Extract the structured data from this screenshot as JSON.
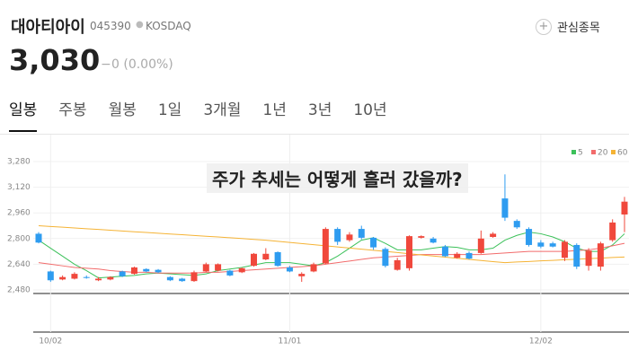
{
  "header": {
    "name": "대아티아이",
    "code": "045390",
    "market": "KOSDAQ",
    "price": "3,030",
    "change_symbol": "−",
    "change": "0 (0.00%)",
    "watch_button": "관심종목"
  },
  "tabs": [
    "일봉",
    "주봉",
    "월봉",
    "1일",
    "3개월",
    "1년",
    "3년",
    "10년"
  ],
  "chart_data": {
    "type": "candlestick",
    "title": "주가 추세는 어떻게 흘러 갔을까?",
    "categories": [
      null,
      "10/02",
      null,
      null,
      null,
      null,
      null,
      null,
      null,
      null,
      null,
      null,
      null,
      null,
      null,
      null,
      null,
      null,
      null,
      null,
      null,
      "11/01",
      null,
      null,
      null,
      null,
      null,
      null,
      null,
      null,
      null,
      null,
      null,
      null,
      null,
      null,
      null,
      null,
      null,
      null,
      null,
      null,
      "12/02",
      null,
      null,
      null,
      null,
      null,
      null,
      null
    ],
    "open": [
      2830,
      2595,
      2545,
      2550,
      2560,
      2540,
      2545,
      2595,
      2580,
      2610,
      2605,
      2560,
      2550,
      2535,
      2595,
      2600,
      2600,
      2590,
      2630,
      2670,
      2715,
      2620,
      2565,
      2595,
      2645,
      2860,
      2790,
      2860,
      2805,
      2735,
      2605,
      2615,
      2805,
      2800,
      2750,
      2680,
      2710,
      2710,
      2810,
      3050,
      2910,
      2860,
      2775,
      2770,
      2680,
      2760,
      2630,
      2625,
      2790,
      2950
    ],
    "high": [
      2840,
      2600,
      2570,
      2590,
      2570,
      2560,
      2565,
      2600,
      2625,
      2615,
      2610,
      2565,
      2555,
      2600,
      2650,
      2645,
      2605,
      2620,
      2710,
      2740,
      2720,
      2630,
      2590,
      2650,
      2870,
      2870,
      2840,
      2880,
      2810,
      2745,
      2680,
      2820,
      2820,
      2810,
      2760,
      2715,
      2720,
      2850,
      2840,
      3200,
      2920,
      2870,
      2790,
      2780,
      2790,
      2770,
      2740,
      2780,
      2920,
      3060
    ],
    "low": [
      2770,
      2530,
      2540,
      2545,
      2550,
      2535,
      2540,
      2560,
      2575,
      2590,
      2585,
      2535,
      2530,
      2530,
      2590,
      2595,
      2565,
      2585,
      2625,
      2665,
      2625,
      2590,
      2530,
      2590,
      2640,
      2760,
      2780,
      2795,
      2730,
      2620,
      2600,
      2600,
      2800,
      2770,
      2685,
      2675,
      2670,
      2705,
      2805,
      2910,
      2860,
      2750,
      2740,
      2745,
      2660,
      2610,
      2600,
      2600,
      2780,
      2840
    ],
    "close": [
      2775,
      2540,
      2560,
      2580,
      2555,
      2550,
      2560,
      2565,
      2620,
      2595,
      2590,
      2540,
      2535,
      2590,
      2640,
      2640,
      2570,
      2615,
      2705,
      2705,
      2630,
      2595,
      2580,
      2640,
      2860,
      2780,
      2825,
      2805,
      2745,
      2630,
      2665,
      2815,
      2815,
      2775,
      2690,
      2705,
      2675,
      2800,
      2830,
      2930,
      2870,
      2760,
      2750,
      2750,
      2780,
      2625,
      2725,
      2770,
      2900,
      3030
    ],
    "up_color": "#f0483c",
    "down_color": "#2e9cf0",
    "series": [
      {
        "name": "5",
        "color": "#3cc15a",
        "values": [
          2790,
          2740,
          2690,
          2640,
          2600,
          2555,
          2560,
          2565,
          2570,
          2580,
          2585,
          2580,
          2575,
          2570,
          2580,
          2600,
          2610,
          2620,
          2635,
          2650,
          2650,
          2650,
          2640,
          2630,
          2650,
          2690,
          2740,
          2790,
          2805,
          2770,
          2730,
          2730,
          2730,
          2740,
          2750,
          2745,
          2730,
          2730,
          2740,
          2790,
          2820,
          2840,
          2830,
          2810,
          2780,
          2740,
          2720,
          2720,
          2760,
          2830
        ]
      },
      {
        "name": "20",
        "color": "#f26b6b",
        "values": [
          2650,
          2640,
          2630,
          2620,
          2615,
          2610,
          2600,
          2595,
          2590,
          2590,
          2585,
          2585,
          2585,
          2585,
          2590,
          2590,
          2595,
          2600,
          2605,
          2610,
          2615,
          2620,
          2625,
          2630,
          2640,
          2650,
          2660,
          2670,
          2680,
          2685,
          2690,
          2695,
          2700,
          2700,
          2700,
          2700,
          2700,
          2700,
          2705,
          2710,
          2715,
          2720,
          2720,
          2720,
          2720,
          2725,
          2730,
          2740,
          2755,
          2770
        ]
      },
      {
        "name": "60",
        "color": "#f5b335",
        "values": [
          2880,
          2875,
          2871,
          2866,
          2861,
          2857,
          2852,
          2847,
          2842,
          2838,
          2833,
          2828,
          2824,
          2819,
          2814,
          2810,
          2805,
          2800,
          2795,
          2790,
          2783,
          2776,
          2769,
          2762,
          2755,
          2748,
          2741,
          2734,
          2727,
          2720,
          2713,
          2705,
          2698,
          2691,
          2684,
          2677,
          2670,
          2663,
          2656,
          2650,
          2654,
          2657,
          2661,
          2664,
          2668,
          2671,
          2675,
          2678,
          2682,
          2685
        ]
      }
    ],
    "ylim": [
      2480,
      3280
    ],
    "yticks": [
      {
        "value": 2480,
        "label": "2,480"
      },
      {
        "value": 2640,
        "label": "2,640"
      },
      {
        "value": 2800,
        "label": "2,800"
      },
      {
        "value": 2960,
        "label": "2,960"
      },
      {
        "value": 3120,
        "label": "3,120"
      },
      {
        "value": 3280,
        "label": "3,280"
      }
    ],
    "grid": true
  }
}
